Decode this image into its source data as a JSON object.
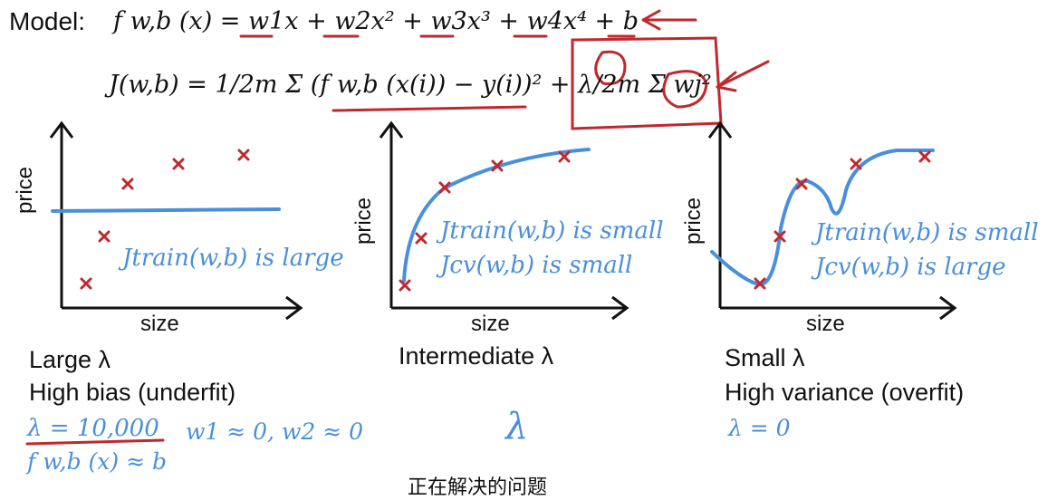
{
  "equations": {
    "model_label": "Model:",
    "model_formula": "f w,b (x) = w1x + w2x² + w3x³ + w4x⁴ + b",
    "cost_formula": "J(w,b) = 1/2m Σ (f w,b (x(i)) − y(i))² + λ/2m Σ wj²"
  },
  "panels": [
    {
      "ylabel": "price",
      "xlabel": "size",
      "annotation": "Jtrain(w,b) is large",
      "caption_line1": "Large λ",
      "caption_line2": "High bias (underfit)",
      "lambda_value": "λ = 10,000",
      "note1": "w1 ≈ 0, w2 ≈ 0",
      "note2": "f w,b (x) ≈ b"
    },
    {
      "ylabel": "price",
      "xlabel": "size",
      "annotation_train": "Jtrain(w,b) is small",
      "annotation_cv": "Jcv(w,b) is small",
      "caption_line1": "Intermediate λ",
      "lambda_value": "λ"
    },
    {
      "ylabel": "price",
      "xlabel": "size",
      "annotation_train": "Jtrain(w,b) is small",
      "annotation_cv": "Jcv(w,b) is large",
      "caption_line1": "Small λ",
      "caption_line2": "High variance (overfit)",
      "lambda_value": "λ = 0"
    }
  ],
  "subtitle": "正在解决的问题",
  "colors": {
    "ink": "#111111",
    "fit": "#4a8fdc",
    "marker": "#c0282d",
    "highlight": "#c0282d"
  }
}
